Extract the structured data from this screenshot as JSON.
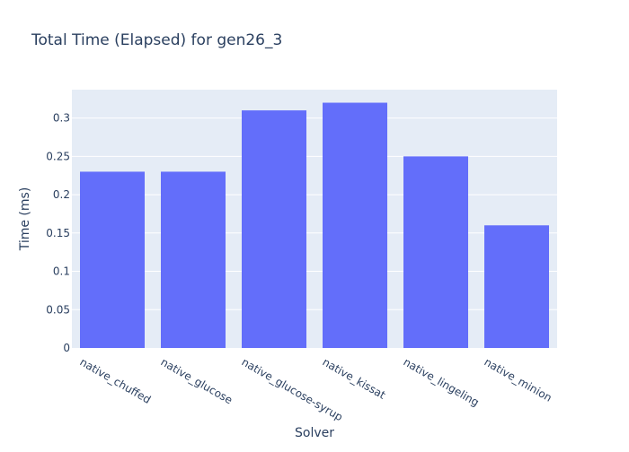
{
  "chart_data": {
    "type": "bar",
    "title": "Total Time (Elapsed) for gen26_3",
    "xlabel": "Solver",
    "ylabel": "Time (ms)",
    "categories": [
      "native_chuffed",
      "native_glucose",
      "native_glucose-syrup",
      "native_kissat",
      "native_lingeling",
      "native_minion"
    ],
    "values": [
      0.23,
      0.23,
      0.31,
      0.32,
      0.25,
      0.16
    ],
    "ylim": [
      0,
      0.337
    ],
    "yticks": [
      0,
      0.05,
      0.1,
      0.15,
      0.2,
      0.25,
      0.3
    ],
    "ytick_labels": [
      "0",
      "0.05",
      "0.1",
      "0.15",
      "0.2",
      "0.25",
      "0.3"
    ],
    "grid": true,
    "colors": {
      "bar": "#636efa",
      "plot_bg": "#e5ecf6",
      "grid": "#ffffff",
      "text": "#2a3f5f",
      "tick_text": "#2a3f5f"
    }
  }
}
